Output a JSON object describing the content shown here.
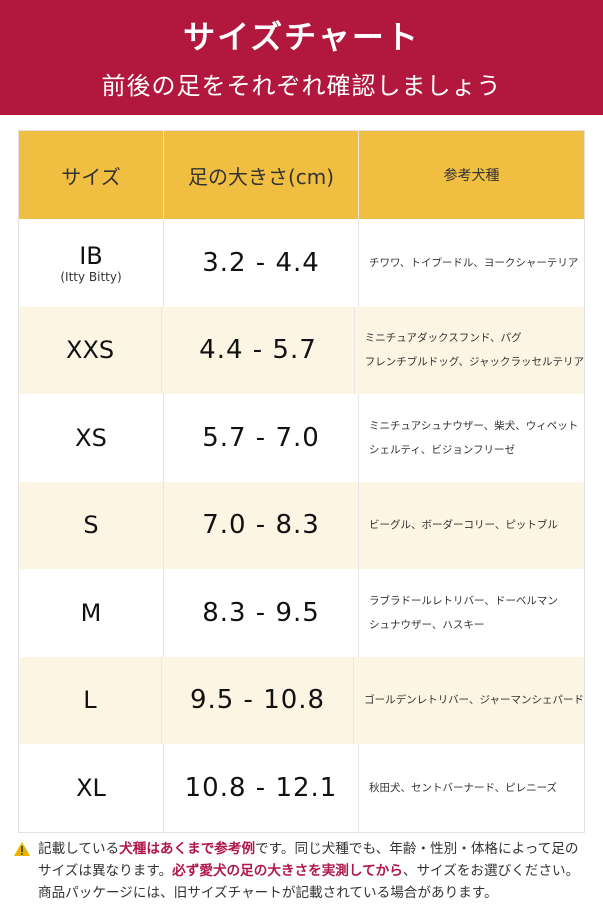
{
  "header": {
    "title": "サイズチャート",
    "subtitle": "前後の足をそれぞれ確認しましょう",
    "color": "#b2173d"
  },
  "table": {
    "columns": [
      "サイズ",
      "足の大きさ(cm)",
      "参考犬種"
    ],
    "header_color": "#f0bf42",
    "rows": [
      {
        "size": "IB",
        "size_sub": "(Itty Bitty)",
        "range": "3.2 - 4.4",
        "breeds": [
          "チワワ、トイプードル、ヨークシャーテリア"
        ]
      },
      {
        "size": "XXS",
        "size_sub": "",
        "range": "4.4 - 5.7",
        "breeds": [
          "ミニチュアダックスフンド、パグ",
          "フレンチブルドッグ、ジャックラッセルテリア"
        ]
      },
      {
        "size": "XS",
        "size_sub": "",
        "range": "5.7 - 7.0",
        "breeds": [
          "ミニチュアシュナウザー、柴犬、ウィペット",
          "シェルティ、ビジョンフリーゼ"
        ]
      },
      {
        "size": "S",
        "size_sub": "",
        "range": "7.0 - 8.3",
        "breeds": [
          "ビーグル、ボーダーコリー、ピットブル"
        ]
      },
      {
        "size": "M",
        "size_sub": "",
        "range": "8.3 - 9.5",
        "breeds": [
          "ラブラドールレトリバー、ドーベルマン",
          "シュナウザー、ハスキー"
        ]
      },
      {
        "size": "L",
        "size_sub": "",
        "range": "9.5 - 10.8",
        "breeds": [
          "ゴールデンレトリバー、ジャーマンシェパード"
        ]
      },
      {
        "size": "XL",
        "size_sub": "",
        "range": "10.8 - 12.1",
        "breeds": [
          "秋田犬、セントバーナード、ピレニーズ"
        ]
      }
    ]
  },
  "note": {
    "icon": "warning-icon",
    "p1": "記載している",
    "e1": "犬種はあくまで参考例",
    "p2": "です。同じ犬種でも、年齢・性別・体格によって足の",
    "p3": "サイズは異なります。",
    "e2": "必ず愛犬の足の大きさを実測してから",
    "p4": "、サイズをお選びください。",
    "p5": "商品パッケージには、旧サイズチャートが記載されている場合があります。"
  }
}
